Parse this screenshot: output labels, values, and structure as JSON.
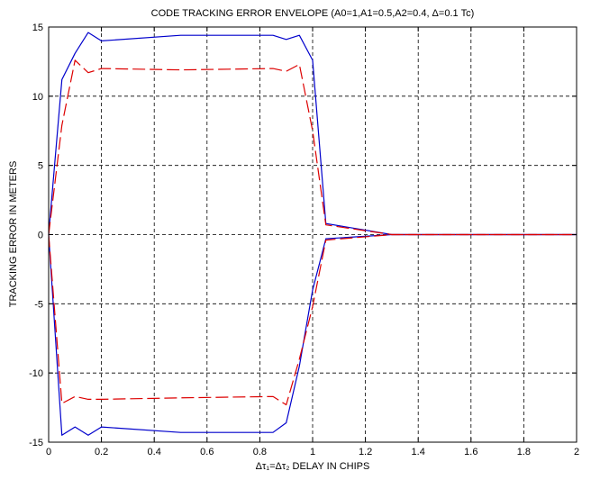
{
  "chart_data": {
    "type": "line",
    "title": "CODE TRACKING ERROR ENVELOPE (A0=1,A1=0.5,A2=0.4, Δ=0.1 Tc)",
    "xlabel": "Δτ₁=Δτ₂ DELAY IN CHIPS",
    "ylabel": "TRACKING ERROR IN METERS",
    "xlim": [
      0,
      2
    ],
    "ylim": [
      -15,
      15
    ],
    "x_ticks": [
      "0",
      "0.2",
      "0.4",
      "0.6",
      "0.8",
      "1",
      "1.2",
      "1.4",
      "1.6",
      "1.8",
      "2"
    ],
    "y_ticks": [
      "15",
      "10",
      "5",
      "0",
      "-5",
      "-10",
      "-15"
    ],
    "grid": true,
    "series": [
      {
        "color": "#0000cc",
        "style": "solid",
        "x": [
          0,
          0.05,
          0.1,
          0.15,
          0.2,
          0.5,
          0.85,
          0.9,
          0.95,
          1.0,
          1.05,
          1.3,
          2.0
        ],
        "y": [
          0,
          11.2,
          13.1,
          14.6,
          14.0,
          14.4,
          14.4,
          14.1,
          14.4,
          12.6,
          0.8,
          0,
          0
        ]
      },
      {
        "color": "#0000cc",
        "style": "solid",
        "x": [
          0,
          0.05,
          0.1,
          0.15,
          0.2,
          0.5,
          0.85,
          0.9,
          0.95,
          1.0,
          1.05,
          1.3,
          2.0
        ],
        "y": [
          0,
          -14.5,
          -13.9,
          -14.5,
          -13.9,
          -14.3,
          -14.3,
          -13.6,
          -9.5,
          -4.0,
          -0.3,
          0,
          0
        ]
      },
      {
        "color": "#dd0000",
        "style": "dashed",
        "x": [
          0,
          0.05,
          0.1,
          0.15,
          0.2,
          0.5,
          0.85,
          0.9,
          0.95,
          1.0,
          1.05,
          1.3,
          2.0
        ],
        "y": [
          0,
          7.9,
          12.6,
          11.7,
          12.0,
          11.9,
          12.0,
          11.8,
          12.3,
          7.5,
          0.7,
          0,
          0
        ]
      },
      {
        "color": "#dd0000",
        "style": "dashed",
        "x": [
          0,
          0.05,
          0.1,
          0.15,
          0.2,
          0.5,
          0.85,
          0.9,
          0.95,
          1.0,
          1.05,
          1.3,
          2.0
        ],
        "y": [
          0,
          -12.2,
          -11.7,
          -11.9,
          -11.9,
          -11.8,
          -11.7,
          -12.3,
          -9.0,
          -5.2,
          -0.4,
          0,
          0
        ]
      }
    ]
  }
}
